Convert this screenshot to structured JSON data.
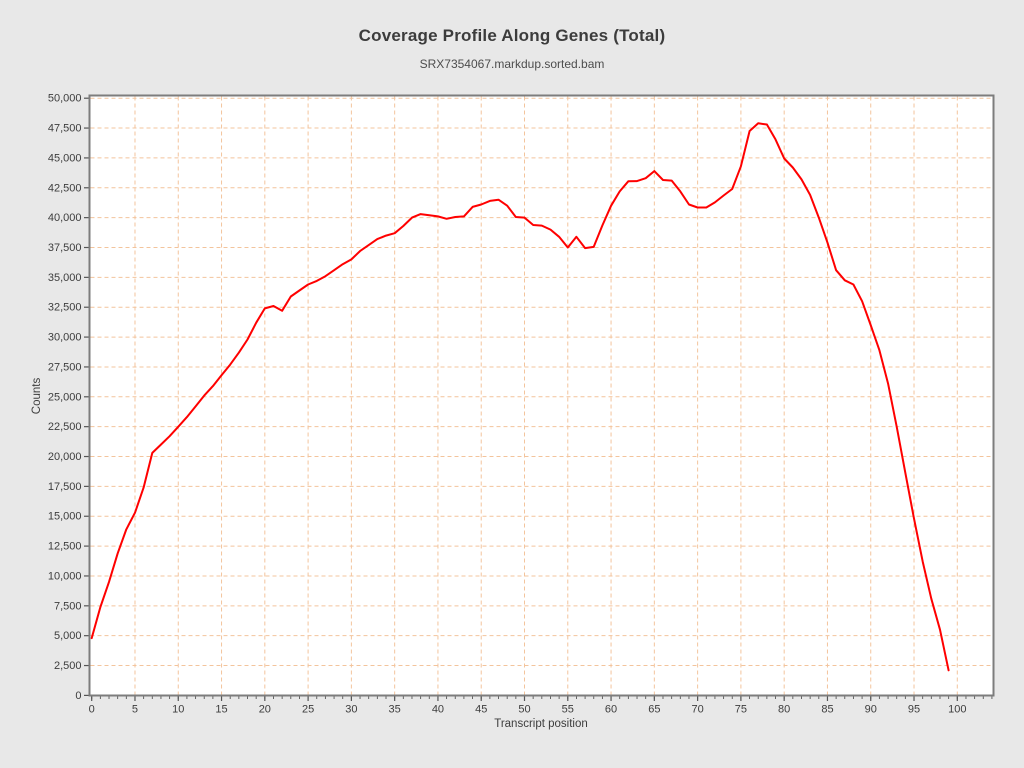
{
  "chart_data": {
    "type": "line",
    "title": "Coverage Profile Along Genes (Total)",
    "subtitle": "SRX7354067.markdup.sorted.bam",
    "xlabel": "Transcript position",
    "ylabel": "Counts",
    "xlim": [
      0,
      104
    ],
    "ylim": [
      0,
      50000
    ],
    "x_ticks": [
      0,
      5,
      10,
      15,
      20,
      25,
      30,
      35,
      40,
      45,
      50,
      55,
      60,
      65,
      70,
      75,
      80,
      85,
      90,
      95,
      100
    ],
    "y_ticks": [
      0,
      2500,
      5000,
      7500,
      10000,
      12500,
      15000,
      17500,
      20000,
      22500,
      25000,
      27500,
      30000,
      32500,
      35000,
      37500,
      40000,
      42500,
      45000,
      47500,
      50000
    ],
    "grid": true,
    "legend": "none",
    "series": [
      {
        "name": "Total coverage",
        "x_start": 0,
        "x_step": 1,
        "y": [
          4800,
          7400,
          9500,
          11900,
          13900,
          15300,
          17400,
          20300,
          21000,
          21700,
          22500,
          23300,
          24200,
          25100,
          25900,
          26800,
          27700,
          28700,
          29800,
          31200,
          32400,
          32600,
          32200,
          33400,
          33900,
          34400,
          34700,
          35100,
          35600,
          36100,
          36500,
          37200,
          37700,
          38200,
          38500,
          38700,
          39300,
          40000,
          40300,
          40200,
          40100,
          39900,
          40050,
          40100,
          40900,
          41100,
          41400,
          41500,
          41000,
          40050,
          40000,
          39380,
          39330,
          39000,
          38400,
          37500,
          38400,
          37450,
          37550,
          39350,
          41000,
          42200,
          43050,
          43060,
          43300,
          43900,
          43150,
          43100,
          42200,
          41100,
          40850,
          40850,
          41280,
          41850,
          42400,
          44300,
          47250,
          47900,
          47800,
          46550,
          44950,
          44200,
          43200,
          41900,
          40000,
          37900,
          35600,
          34750,
          34400,
          33000,
          31000,
          28900,
          26100,
          22500,
          18600,
          14800,
          11200,
          8100,
          5500,
          2100
        ]
      }
    ],
    "colors": {
      "line": "#ff0000",
      "background": "#e8e8e8",
      "plot_background": "#ffffff",
      "gridline": "#f3c49c",
      "frame": "#7d7d7d",
      "tick": "#555555",
      "text": "#3d3d3d"
    }
  }
}
